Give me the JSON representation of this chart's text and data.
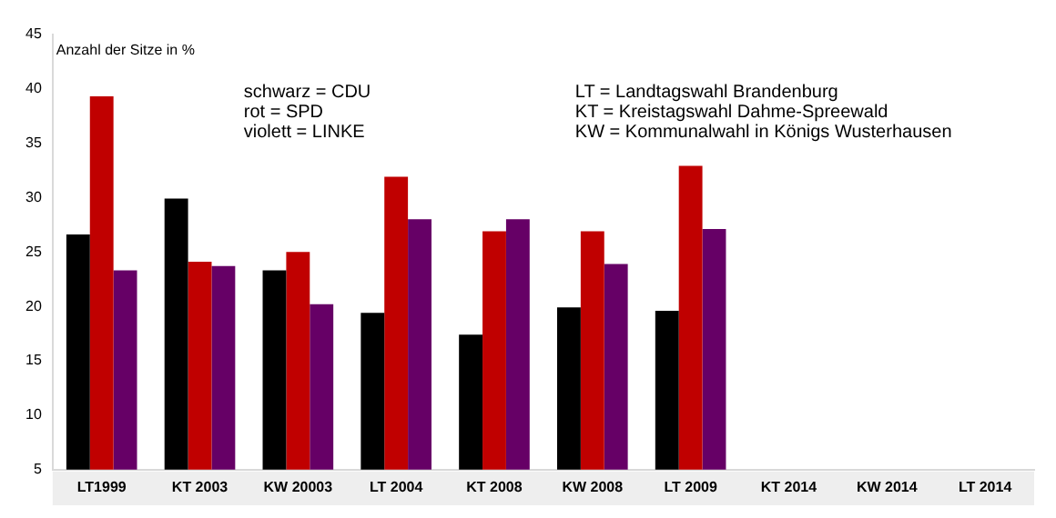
{
  "chart_data": {
    "type": "bar",
    "ylabel": "Anzahl der Sitze in %",
    "categories": [
      "LT1999",
      "KT 2003",
      "KW 20003",
      "LT 2004",
      "KT 2008",
      "KW 2008",
      "LT 2009",
      "KT 2014",
      "KW 2014",
      "LT 2014"
    ],
    "series": [
      {
        "color": "#000000",
        "values": [
          26.6,
          29.9,
          23.3,
          19.4,
          17.4,
          19.9,
          19.6,
          null,
          null,
          null
        ]
      },
      {
        "color": "#c00000",
        "values": [
          39.3,
          24.1,
          25.0,
          31.9,
          26.9,
          26.9,
          32.9,
          null,
          null,
          null
        ]
      },
      {
        "color": "#660066",
        "values": [
          23.3,
          23.7,
          20.2,
          28.0,
          28.0,
          23.9,
          27.1,
          null,
          null,
          null
        ]
      }
    ],
    "annotations": [
      "schwarz = CDU",
      "rot = SPD",
      "violett = LINKE",
      "LT = Landtagswahl Brandenburg",
      "KT = Kreistagswahl Dahme-Spreewald",
      "KW = Kommunalwahl in Königs Wusterhausen"
    ],
    "ylim": [
      5,
      45
    ],
    "yticks": [
      5,
      10,
      15,
      20,
      25,
      30,
      35,
      40,
      45
    ],
    "grid": false,
    "legend": false
  }
}
